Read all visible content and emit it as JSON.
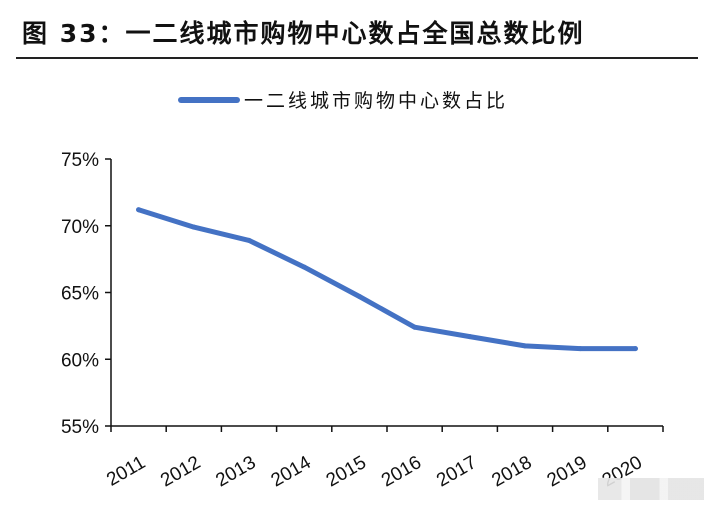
{
  "header": {
    "title": "图 33：一二线城市购物中心数占全国总数比例"
  },
  "chart_data": {
    "type": "line",
    "title": "",
    "xlabel": "",
    "ylabel": "",
    "categories": [
      "2011",
      "2012",
      "2013",
      "2014",
      "2015",
      "2016",
      "2017",
      "2018",
      "2019",
      "2020"
    ],
    "ylim": [
      55,
      75
    ],
    "yticks": [
      "55%",
      "60%",
      "65%",
      "70%",
      "75%"
    ],
    "legend_position": "top",
    "grid": false,
    "color": "#4472c4",
    "series": [
      {
        "name": "一二线城市购物中心数占比",
        "values": [
          71.2,
          69.9,
          68.9,
          66.9,
          64.7,
          62.4,
          61.7,
          61.0,
          60.8,
          60.8
        ]
      }
    ]
  }
}
